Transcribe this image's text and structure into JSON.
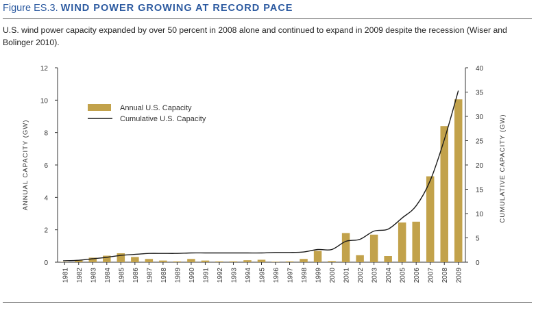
{
  "figure": {
    "label": "Figure ES.3.",
    "title": "WIND POWER GROWING AT RECORD PACE",
    "caption": "U.S. wind power capacity expanded by over 50 percent in 2008 alone and continued to expand in 2009 despite the recession (Wiser and Bolinger 2010)."
  },
  "colors": {
    "bar": "#c2a24b",
    "line": "#1a1a1a",
    "title": "#2c5aa0"
  },
  "chart_data": {
    "type": "bar",
    "categories": [
      "1981",
      "1982",
      "1983",
      "1984",
      "1985",
      "1986",
      "1987",
      "1988",
      "1989",
      "1990",
      "1991",
      "1992",
      "1993",
      "1994",
      "1995",
      "1996",
      "1997",
      "1998",
      "1999",
      "2000",
      "2001",
      "2002",
      "2003",
      "2004",
      "2005",
      "2006",
      "2007",
      "2008",
      "2009"
    ],
    "series": [
      {
        "name": "Annual U.S. Capacity",
        "type": "bar",
        "axis": "left",
        "values": [
          0.02,
          0.12,
          0.28,
          0.4,
          0.55,
          0.32,
          0.2,
          0.1,
          0.05,
          0.2,
          0.1,
          0.05,
          0.05,
          0.12,
          0.15,
          0.03,
          0.05,
          0.2,
          0.7,
          0.07,
          1.8,
          0.43,
          1.7,
          0.38,
          2.45,
          2.5,
          5.3,
          8.4,
          10.05
        ]
      },
      {
        "name": "Cumulative U.S. Capacity",
        "type": "line",
        "axis": "right",
        "values": [
          0.3,
          0.4,
          0.7,
          1.0,
          1.4,
          1.6,
          1.8,
          1.8,
          1.8,
          1.9,
          1.9,
          1.9,
          1.9,
          1.9,
          1.9,
          2.0,
          2.0,
          2.1,
          2.6,
          2.6,
          4.3,
          4.7,
          6.4,
          6.8,
          9.1,
          11.6,
          16.8,
          25.2,
          35.3
        ]
      }
    ],
    "ylabel": "ANNUAL CAPACITY (GW)",
    "ylabel_right": "CUMULATIVE CAPACITY (GW)",
    "ylim": [
      0,
      12
    ],
    "ylim_right": [
      0,
      40
    ],
    "yticks": [
      "0",
      "2",
      "4",
      "6",
      "8",
      "10",
      "12"
    ],
    "yticks_right": [
      "0",
      "5",
      "10",
      "15",
      "20",
      "25",
      "30",
      "35",
      "40"
    ],
    "legend_position": "top-left",
    "grid": false
  }
}
